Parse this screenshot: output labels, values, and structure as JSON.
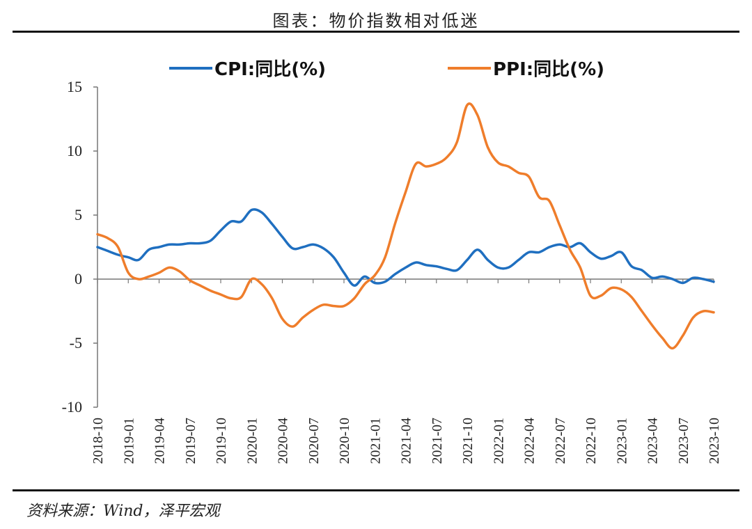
{
  "title": "图表：物价指数相对低迷",
  "source": "资料来源：Wind，泽平宏观",
  "colors": {
    "cpi": "#1f6fc0",
    "ppi": "#ef7d2b",
    "axis": "#777777"
  },
  "chart_data": {
    "type": "line",
    "legend_position": "top",
    "grid": false,
    "ylim": [
      -10,
      15
    ],
    "yticks": [
      15,
      10,
      5,
      0,
      -5,
      -10
    ],
    "xticks": [
      "2018-10",
      "2019-01",
      "2019-04",
      "2019-07",
      "2019-10",
      "2020-01",
      "2020-04",
      "2020-07",
      "2020-10",
      "2021-01",
      "2021-04",
      "2021-07",
      "2021-10",
      "2022-01",
      "2022-04",
      "2022-07",
      "2022-10",
      "2023-01",
      "2023-04",
      "2023-07",
      "2023-10"
    ],
    "x": [
      "2018-10",
      "2018-11",
      "2018-12",
      "2019-01",
      "2019-02",
      "2019-03",
      "2019-04",
      "2019-05",
      "2019-06",
      "2019-07",
      "2019-08",
      "2019-09",
      "2019-10",
      "2019-11",
      "2019-12",
      "2020-01",
      "2020-02",
      "2020-03",
      "2020-04",
      "2020-05",
      "2020-06",
      "2020-07",
      "2020-08",
      "2020-09",
      "2020-10",
      "2020-11",
      "2020-12",
      "2021-01",
      "2021-02",
      "2021-03",
      "2021-04",
      "2021-05",
      "2021-06",
      "2021-07",
      "2021-08",
      "2021-09",
      "2021-10",
      "2021-11",
      "2021-12",
      "2022-01",
      "2022-02",
      "2022-03",
      "2022-04",
      "2022-05",
      "2022-06",
      "2022-07",
      "2022-08",
      "2022-09",
      "2022-10",
      "2022-11",
      "2022-12",
      "2023-01",
      "2023-02",
      "2023-03",
      "2023-04",
      "2023-05",
      "2023-06",
      "2023-07",
      "2023-08",
      "2023-09",
      "2023-10"
    ],
    "series": [
      {
        "name": "CPI:同比(%)",
        "values": [
          2.5,
          2.2,
          1.9,
          1.7,
          1.5,
          2.3,
          2.5,
          2.7,
          2.7,
          2.8,
          2.8,
          3.0,
          3.8,
          4.5,
          4.5,
          5.4,
          5.2,
          4.3,
          3.3,
          2.4,
          2.5,
          2.7,
          2.4,
          1.7,
          0.5,
          -0.5,
          0.2,
          -0.3,
          -0.2,
          0.4,
          0.9,
          1.3,
          1.1,
          1.0,
          0.8,
          0.7,
          1.5,
          2.3,
          1.5,
          0.9,
          0.9,
          1.5,
          2.1,
          2.1,
          2.5,
          2.7,
          2.5,
          2.8,
          2.1,
          1.6,
          1.8,
          2.1,
          1.0,
          0.7,
          0.1,
          0.2,
          0.0,
          -0.3,
          0.1,
          0.0,
          -0.2
        ]
      },
      {
        "name": "PPI:同比(%)",
        "values": [
          3.5,
          3.2,
          2.5,
          0.5,
          0.0,
          0.2,
          0.5,
          0.9,
          0.6,
          -0.1,
          -0.5,
          -0.9,
          -1.2,
          -1.5,
          -1.4,
          0.0,
          -0.4,
          -1.5,
          -3.1,
          -3.7,
          -3.0,
          -2.4,
          -2.0,
          -2.1,
          -2.1,
          -1.5,
          -0.4,
          0.3,
          1.7,
          4.4,
          6.8,
          9.0,
          8.8,
          9.0,
          9.5,
          10.7,
          13.6,
          12.8,
          10.3,
          9.1,
          8.8,
          8.3,
          8.0,
          6.4,
          6.1,
          4.2,
          2.3,
          0.9,
          -1.3,
          -1.3,
          -0.7,
          -0.8,
          -1.4,
          -2.5,
          -3.6,
          -4.6,
          -5.4,
          -4.4,
          -3.0,
          -2.5,
          -2.6
        ]
      }
    ]
  }
}
